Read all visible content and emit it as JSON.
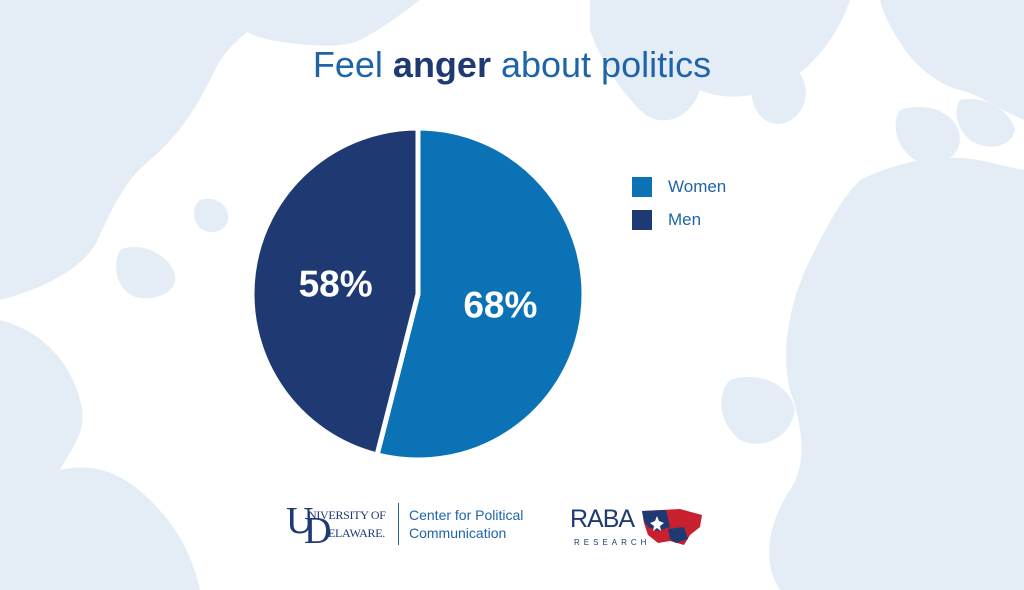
{
  "title": {
    "prefix": "Feel ",
    "emphasis": "anger",
    "suffix": " about politics"
  },
  "legend": {
    "position": "right",
    "items": [
      {
        "label": "Women",
        "color": "#0a72b5"
      },
      {
        "label": "Men",
        "color": "#1f3a73"
      }
    ]
  },
  "chart_data": {
    "type": "pie",
    "title": "Feel anger about politics",
    "series": [
      {
        "name": "Women",
        "value": 68,
        "label": "68%",
        "color": "#0a72b5"
      },
      {
        "name": "Men",
        "value": 58,
        "label": "58%",
        "color": "#1f3a73"
      }
    ],
    "legend_position": "right"
  },
  "footer": {
    "ud_line1": "NIVERSITY OF",
    "ud_line2": "ELAWARE.",
    "center_line1": "Center for Political",
    "center_line2": "Communication",
    "raba_word": "RABA",
    "raba_sub": "RESEARCH"
  },
  "colors": {
    "background_map": "#e3ecf5",
    "title": "#1f64a8",
    "title_emphasis": "#1f3a73"
  }
}
